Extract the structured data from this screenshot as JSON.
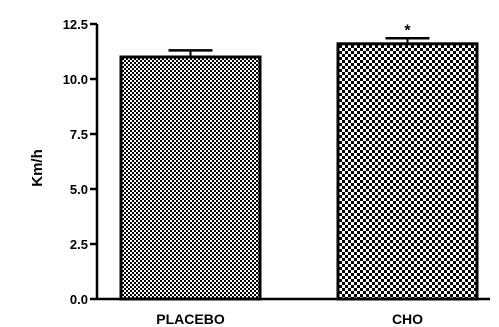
{
  "chart_data": {
    "type": "bar",
    "categories": [
      "PLACEBO",
      "CHO"
    ],
    "values": [
      11.0,
      11.6
    ],
    "errors": [
      0.3,
      0.25
    ],
    "annotations": [
      "",
      "*"
    ],
    "ylabel": "Km/h",
    "ylim": [
      0,
      12.5
    ],
    "yticks": [
      "0.0",
      "2.5",
      "5.0",
      "7.5",
      "10.0",
      "12.5"
    ],
    "ytick_values": [
      0,
      2.5,
      5,
      7.5,
      10,
      12.5
    ],
    "grid": false,
    "bar_patterns": [
      "fine-checker",
      "coarse-checker"
    ],
    "colors": {
      "bar_dark": "#000000",
      "bar_light": "#ffffff"
    }
  }
}
